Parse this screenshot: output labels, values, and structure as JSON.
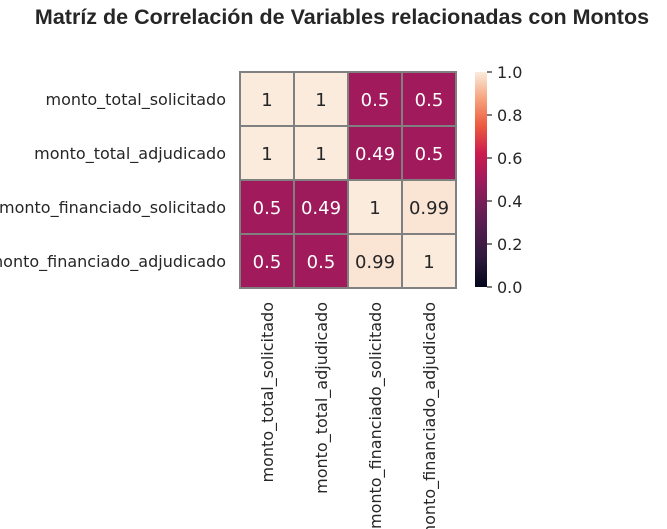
{
  "chart_data": {
    "type": "heatmap",
    "title": "Matríz de Correlación de Variables relacionadas con Montos",
    "rows": [
      "monto_total_solicitado",
      "monto_total_adjudicado",
      "monto_financiado_solicitado",
      "monto_financiado_adjudicado"
    ],
    "columns": [
      "monto_total_solicitado",
      "monto_total_adjudicado",
      "monto_financiado_solicitado",
      "monto_financiado_adjudicado"
    ],
    "values": [
      [
        1,
        1,
        0.5,
        0.5
      ],
      [
        1,
        1,
        0.49,
        0.5
      ],
      [
        0.5,
        0.49,
        1,
        0.99
      ],
      [
        0.5,
        0.5,
        0.99,
        1
      ]
    ],
    "annotations": [
      [
        "1",
        "1",
        "0.5",
        "0.5"
      ],
      [
        "1",
        "1",
        "0.49",
        "0.5"
      ],
      [
        "0.5",
        "0.49",
        "1",
        "0.99"
      ],
      [
        "0.5",
        "0.5",
        "0.99",
        "1"
      ]
    ],
    "colorbar": {
      "range": [
        0.0,
        1.0
      ],
      "ticks": [
        "0.0",
        "0.2",
        "0.4",
        "0.6",
        "0.8",
        "1.0"
      ],
      "colormap": "rocket"
    },
    "cell_border_color": "#808080"
  }
}
